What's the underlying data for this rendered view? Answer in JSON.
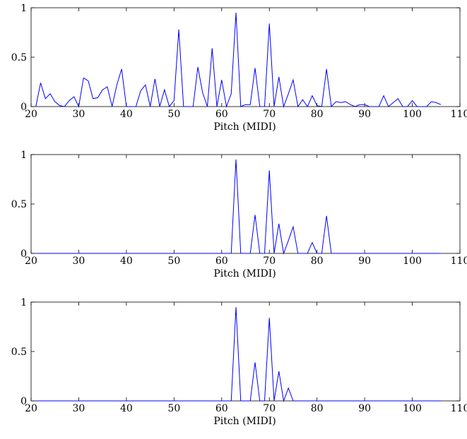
{
  "chart_data": [
    {
      "type": "line",
      "xlabel": "Pitch (MIDI)",
      "ylabel": "",
      "xlim": [
        20,
        110
      ],
      "ylim": [
        0,
        1
      ],
      "xticks": [
        20,
        30,
        40,
        50,
        60,
        70,
        80,
        90,
        100,
        110
      ],
      "yticks": [
        0,
        0.5,
        1
      ],
      "xtick_labels": [
        "20",
        "30",
        "40",
        "50",
        "60",
        "70",
        "80",
        "90",
        "100",
        "110"
      ],
      "ytick_labels": [
        "0",
        "0.5",
        "1"
      ],
      "grid": false,
      "line_color": "#0000ff",
      "series": [
        {
          "x": [
            21,
            22,
            23,
            24,
            25,
            26,
            27,
            28,
            29,
            30,
            31,
            32,
            33,
            34,
            35,
            36,
            37,
            38,
            39,
            40,
            41,
            42,
            43,
            44,
            45,
            46,
            47,
            48,
            49,
            50,
            51,
            52,
            53,
            54,
            55,
            56,
            57,
            58,
            59,
            60,
            61,
            62,
            63,
            64,
            65,
            66,
            67,
            68,
            69,
            70,
            71,
            72,
            73,
            74,
            75,
            76,
            77,
            78,
            79,
            80,
            81,
            82,
            83,
            84,
            85,
            86,
            87,
            88,
            89,
            90,
            91,
            92,
            93,
            94,
            95,
            96,
            97,
            98,
            99,
            100,
            101,
            102,
            103,
            104,
            105,
            106
          ],
          "values": [
            0,
            0.24,
            0.08,
            0.13,
            0.05,
            0.01,
            0,
            0.06,
            0.1,
            0,
            0.29,
            0.26,
            0.08,
            0.09,
            0.17,
            0.2,
            0,
            0.22,
            0.38,
            0,
            0,
            0,
            0.16,
            0.22,
            0,
            0.28,
            0,
            0.17,
            0,
            0.06,
            0.78,
            0,
            0,
            0,
            0.4,
            0.14,
            0,
            0.59,
            0,
            0.27,
            0,
            0.13,
            0.95,
            0,
            0.02,
            0.02,
            0.39,
            0,
            0,
            0.84,
            0,
            0.3,
            0,
            0.13,
            0.27,
            0,
            0.07,
            0,
            0.11,
            0.01,
            0,
            0.38,
            0,
            0.05,
            0.04,
            0.05,
            0.02,
            0,
            0.02,
            0.02,
            0,
            0,
            0,
            0.11,
            0,
            0.04,
            0.08,
            0,
            0,
            0.06,
            0,
            0,
            0,
            0.05,
            0.04,
            0.02
          ]
        }
      ]
    },
    {
      "type": "line",
      "xlabel": "Pitch (MIDI)",
      "ylabel": "",
      "xlim": [
        20,
        110
      ],
      "ylim": [
        0,
        1
      ],
      "xticks": [
        20,
        30,
        40,
        50,
        60,
        70,
        80,
        90,
        100,
        110
      ],
      "yticks": [
        0,
        0.5,
        1
      ],
      "xtick_labels": [
        "20",
        "30",
        "40",
        "50",
        "60",
        "70",
        "80",
        "90",
        "100",
        "110"
      ],
      "ytick_labels": [
        "0",
        "0.5",
        "1"
      ],
      "grid": false,
      "line_color": "#0000ff",
      "series": [
        {
          "x": [
            21,
            62,
            63,
            64,
            65,
            66,
            67,
            68,
            69,
            70,
            71,
            72,
            73,
            74,
            75,
            76,
            77,
            78,
            79,
            80,
            81,
            82,
            83,
            106
          ],
          "values": [
            0,
            0,
            0.95,
            0,
            0,
            0,
            0.39,
            0,
            0,
            0.84,
            0,
            0.3,
            0,
            0.13,
            0.27,
            0,
            0,
            0,
            0.11,
            0,
            0,
            0.38,
            0,
            0
          ]
        }
      ]
    },
    {
      "type": "line",
      "xlabel": "Pitch (MIDI)",
      "ylabel": "",
      "xlim": [
        20,
        110
      ],
      "ylim": [
        0,
        1
      ],
      "xticks": [
        20,
        30,
        40,
        50,
        60,
        70,
        80,
        90,
        100,
        110
      ],
      "yticks": [
        0,
        0.5,
        1
      ],
      "xtick_labels": [
        "20",
        "30",
        "40",
        "50",
        "60",
        "70",
        "80",
        "90",
        "100",
        "110"
      ],
      "ytick_labels": [
        "0",
        "0.5",
        "1"
      ],
      "grid": false,
      "line_color": "#0000ff",
      "series": [
        {
          "x": [
            21,
            62,
            63,
            64,
            65,
            66,
            67,
            68,
            69,
            70,
            71,
            72,
            73,
            74,
            75,
            106
          ],
          "values": [
            0,
            0,
            0.95,
            0,
            0,
            0,
            0.39,
            0,
            0,
            0.84,
            0,
            0.3,
            0,
            0.13,
            0,
            0
          ]
        }
      ]
    }
  ]
}
